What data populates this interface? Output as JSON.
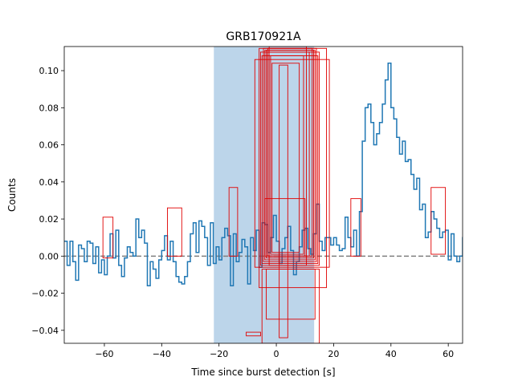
{
  "chart_data": {
    "type": "line",
    "title": "GRB170921A",
    "xlabel": "Time since burst detection [s]",
    "ylabel": "Counts",
    "xlim": [
      -74,
      65
    ],
    "ylim": [
      -0.047,
      0.113
    ],
    "xticks": [
      -60,
      -40,
      -20,
      0,
      20,
      40,
      60
    ],
    "xtick_labels": [
      "−60",
      "−40",
      "−20",
      "0",
      "20",
      "40",
      "60"
    ],
    "yticks": [
      -0.04,
      -0.02,
      0.0,
      0.02,
      0.04,
      0.06,
      0.08,
      0.1
    ],
    "ytick_labels": [
      "−0.04",
      "−0.02",
      "0.00",
      "0.02",
      "0.04",
      "0.06",
      "0.08",
      "0.10"
    ],
    "grid": false,
    "legend": "none",
    "background_band": {
      "x0": -21.8,
      "x1": 13.2
    },
    "baseline": {
      "y": 0.0,
      "style": "dashed"
    },
    "series": [
      {
        "style": "steps",
        "bin_width": 1,
        "x_start": -74,
        "values": [
          0.008,
          -0.005,
          0.008,
          -0.003,
          -0.013,
          0.006,
          0.004,
          -0.003,
          0.008,
          0.007,
          -0.004,
          0.005,
          -0.009,
          -0.002,
          -0.01,
          0.0,
          0.012,
          -0.001,
          0.014,
          -0.005,
          -0.011,
          -0.001,
          0.005,
          0.002,
          0.0,
          0.02,
          0.01,
          0.014,
          0.007,
          -0.016,
          -0.003,
          -0.007,
          -0.012,
          -0.002,
          0.003,
          0.011,
          -0.002,
          0.008,
          -0.003,
          -0.011,
          -0.014,
          -0.015,
          -0.011,
          -0.003,
          0.012,
          0.018,
          0.002,
          0.019,
          0.016,
          0.01,
          -0.005,
          0.018,
          -0.004,
          0.005,
          -0.002,
          0.01,
          0.015,
          0.011,
          -0.016,
          0.012,
          -0.003,
          0.002,
          0.009,
          0.005,
          -0.015,
          0.01,
          0.003,
          0.014,
          -0.006,
          0.018,
          0.017,
          0.002,
          0.01,
          0.022,
          0.008,
          -0.004,
          0.004,
          0.01,
          0.016,
          0.003,
          -0.01,
          -0.003,
          0.005,
          0.014,
          0.015,
          0.004,
          0.001,
          0.012,
          0.028,
          0.008,
          0.003,
          0.01,
          0.01,
          0.006,
          0.01,
          0.006,
          0.003,
          0.004,
          0.021,
          0.01,
          0.005,
          0.014,
          0.0,
          0.024,
          0.062,
          0.08,
          0.082,
          0.072,
          0.06,
          0.066,
          0.072,
          0.082,
          0.095,
          0.104,
          0.08,
          0.074,
          0.064,
          0.055,
          0.062,
          0.051,
          0.052,
          0.044,
          0.036,
          0.042,
          0.025,
          0.028,
          0.01,
          0.013,
          0.024,
          0.02,
          0.015,
          0.01,
          0.013,
          0.014,
          -0.002,
          0.012,
          0.0,
          -0.003,
          0.0,
          0.01,
          0.012,
          0.003,
          0.014,
          0.007,
          0.006,
          0.004,
          -0.005,
          -0.008,
          0.006,
          0.006,
          0.01,
          0.003,
          0.001,
          0.012,
          -0.014,
          0.009,
          0.0,
          0.0,
          0.0,
          0.011,
          0.022,
          0.01,
          0.008,
          0.017,
          0.012,
          0.006,
          -0.013,
          0.014,
          0.006,
          -0.012,
          0.012,
          0.005,
          0.008,
          0.016,
          0.01,
          0.011,
          -0.005,
          -0.003,
          0.006,
          -0.007,
          0.004,
          -0.007,
          0.013,
          0.01,
          0.01,
          0.018,
          0.028,
          0.036,
          0.017,
          -0.002,
          0.004,
          0.017,
          0.016,
          -0.003,
          0.006,
          0.014,
          0.01,
          -0.001,
          -0.015,
          0.004,
          0.0,
          -0.012,
          0.005,
          0.0,
          0.019
        ]
      }
    ],
    "annotations": {
      "rectangles": [
        {
          "x0": -60.5,
          "x1": -57.0,
          "y0": -0.001,
          "y1": 0.021
        },
        {
          "x0": -38.0,
          "x1": -33.0,
          "y0": 0.0,
          "y1": 0.026
        },
        {
          "x0": -16.5,
          "x1": -13.5,
          "y0": 0.0,
          "y1": 0.037
        },
        {
          "x0": -10.5,
          "x1": -5.5,
          "y0": -0.043,
          "y1": -0.041
        },
        {
          "x0": -7.5,
          "x1": 18.5,
          "y0": -0.006,
          "y1": 0.106
        },
        {
          "x0": -6.0,
          "x1": 17.5,
          "y0": -0.017,
          "y1": 0.112
        },
        {
          "x0": -5.5,
          "x1": 15.0,
          "y0": -0.005,
          "y1": 0.11
        },
        {
          "x0": -5.0,
          "x1": 14.5,
          "y0": -0.004,
          "y1": 0.108
        },
        {
          "x0": -4.5,
          "x1": 14.0,
          "y0": -0.003,
          "y1": 0.112
        },
        {
          "x0": -4.0,
          "x1": 13.5,
          "y0": -0.002,
          "y1": 0.111
        },
        {
          "x0": -3.5,
          "x1": 13.0,
          "y0": -0.001,
          "y1": 0.111
        },
        {
          "x0": -3.0,
          "x1": 12.5,
          "y0": 0.0,
          "y1": 0.112
        },
        {
          "x0": -3.0,
          "x1": 11.5,
          "y0": 0.0,
          "y1": 0.11
        },
        {
          "x0": -2.5,
          "x1": 10.5,
          "y0": -0.005,
          "y1": 0.113
        },
        {
          "x0": -2.0,
          "x1": 9.5,
          "y0": 0.001,
          "y1": 0.108
        },
        {
          "x0": -1.5,
          "x1": 8.0,
          "y0": 0.002,
          "y1": 0.104
        },
        {
          "x0": -4.0,
          "x1": 10.0,
          "y0": 0.0,
          "y1": 0.031
        },
        {
          "x0": -5.0,
          "x1": 15.0,
          "y0": -0.047,
          "y1": -0.007
        },
        {
          "x0": -3.5,
          "x1": 13.5,
          "y0": -0.034,
          "y1": -0.007
        },
        {
          "x0": 1.0,
          "x1": 4.0,
          "y0": -0.044,
          "y1": 0.103
        },
        {
          "x0": 26.0,
          "x1": 29.5,
          "y0": 0.0,
          "y1": 0.031
        },
        {
          "x0": 54.0,
          "x1": 59.0,
          "y0": 0.001,
          "y1": 0.037
        }
      ]
    },
    "colors": {
      "line": "#1f77b4",
      "band": "#bcd5ea",
      "rect": "#e00000",
      "baseline": "#7f7f7f",
      "axes": "#000000"
    }
  }
}
